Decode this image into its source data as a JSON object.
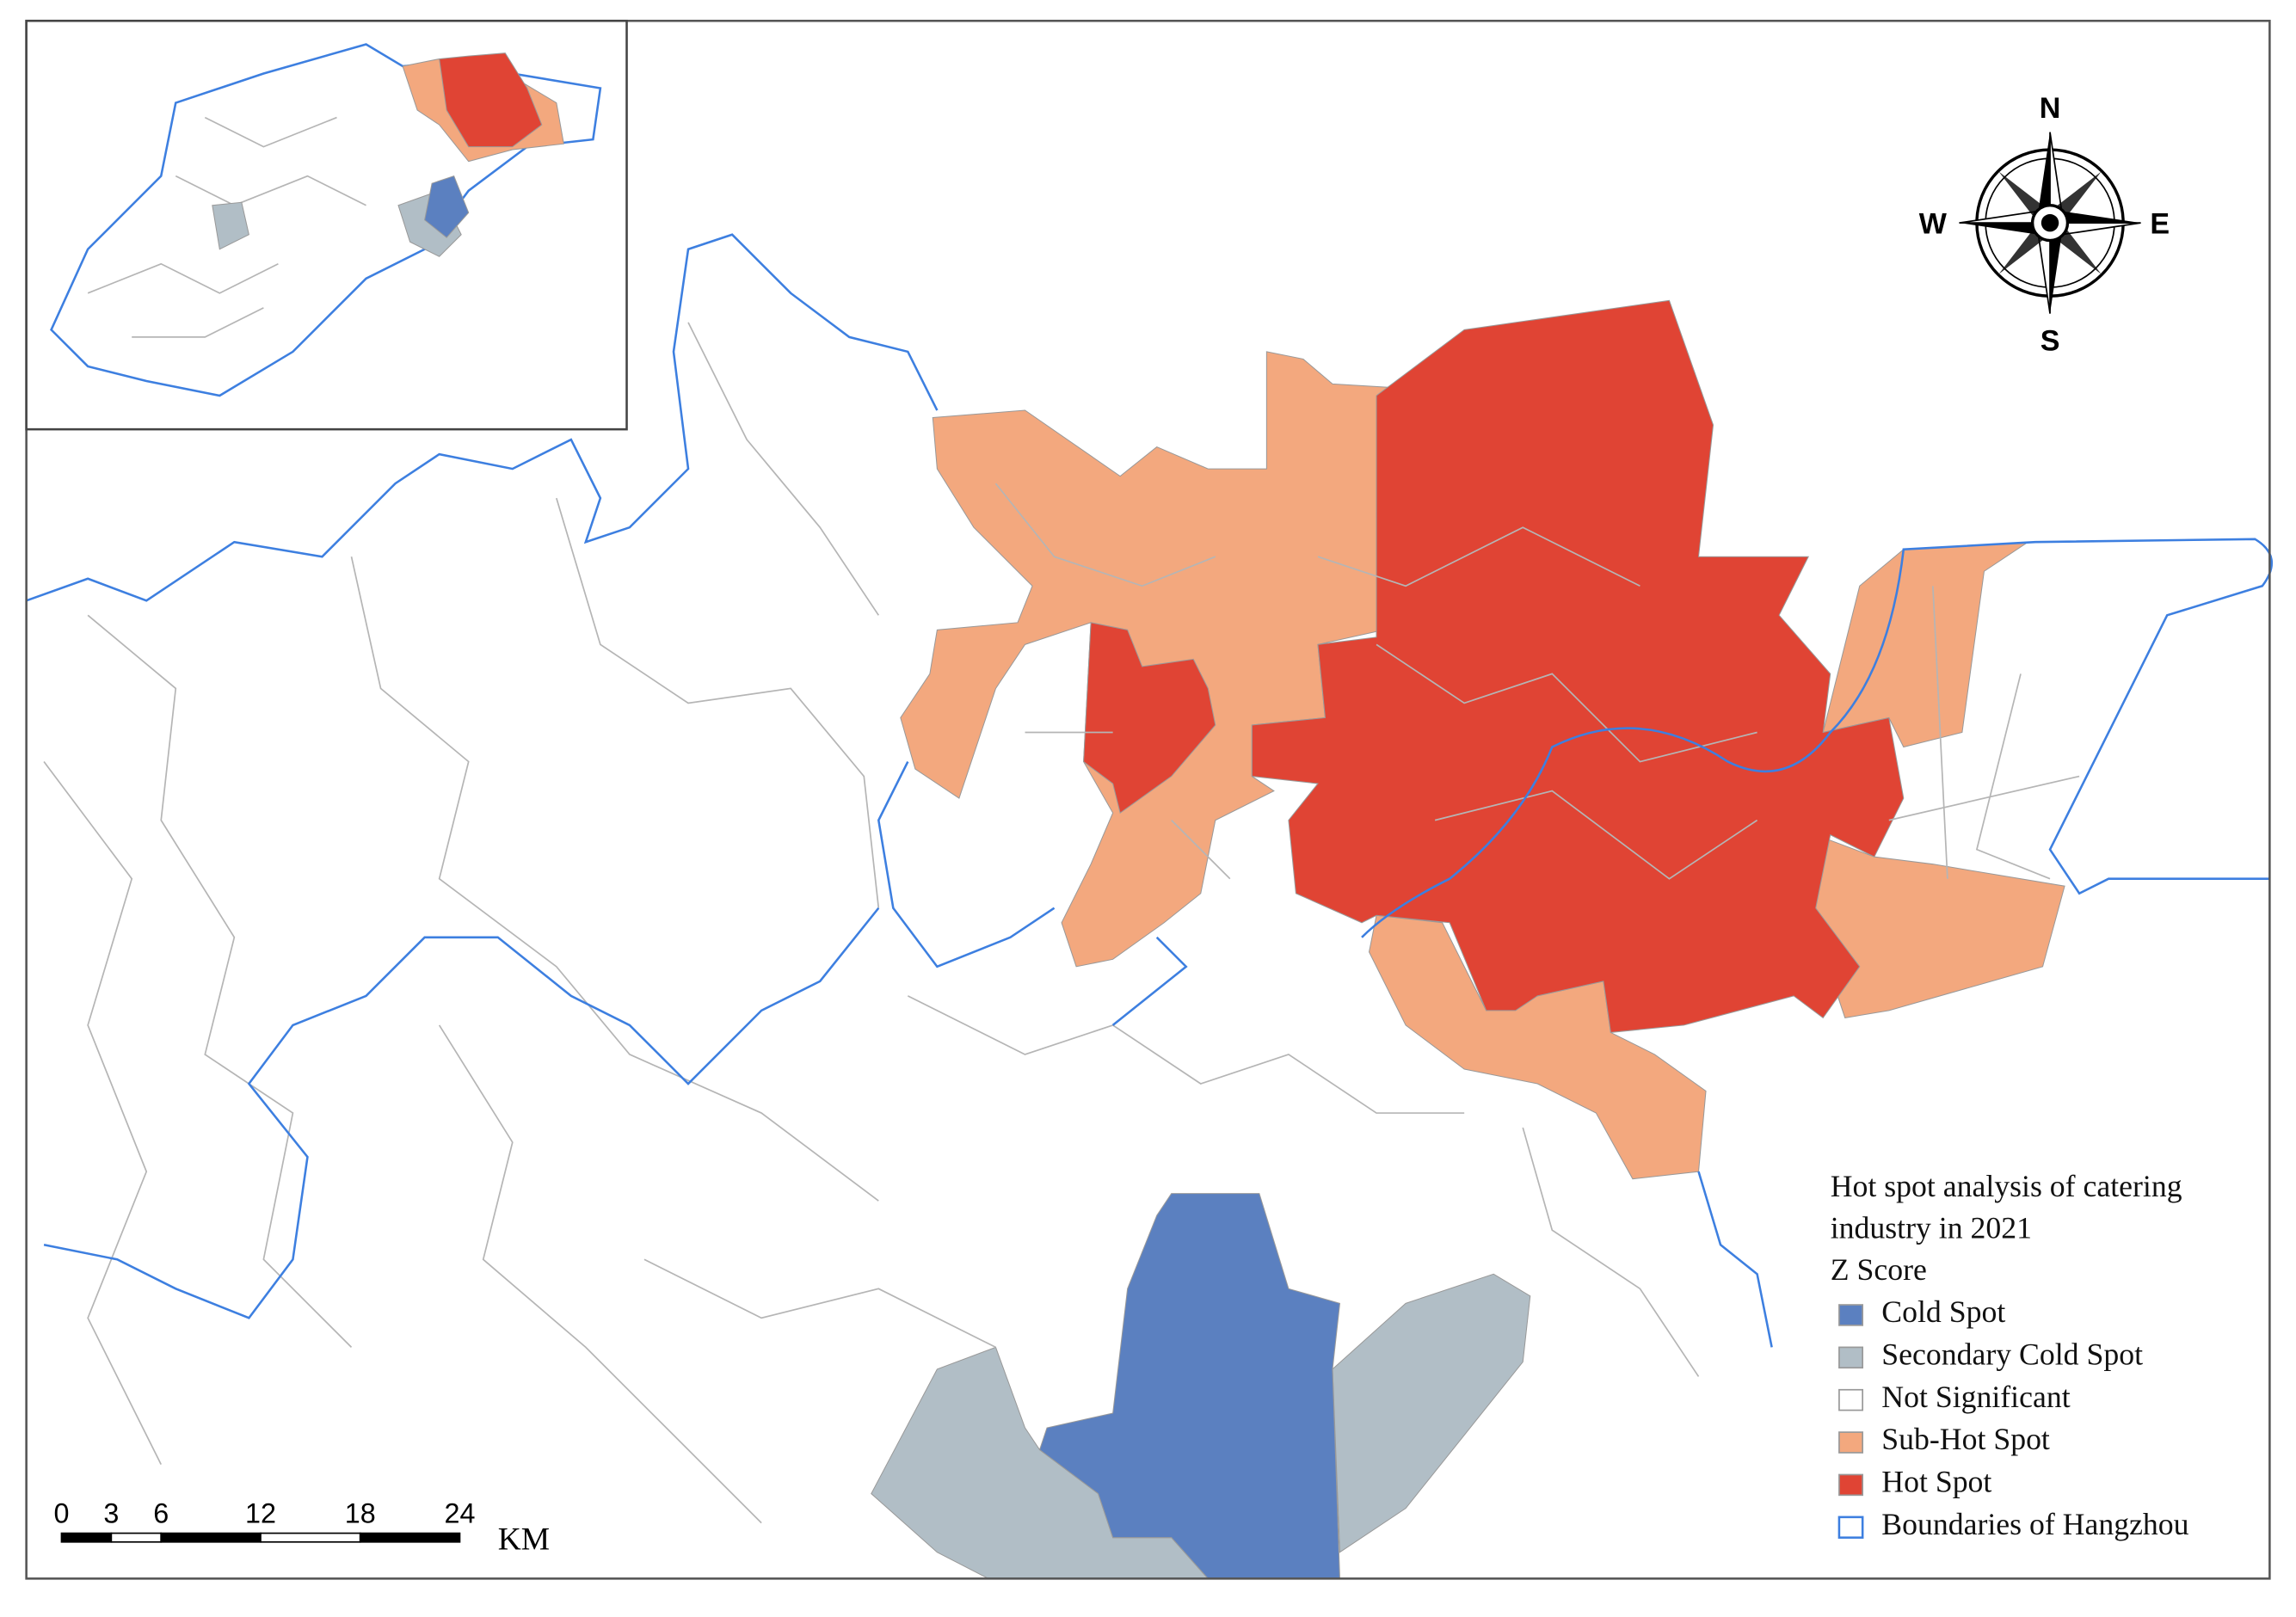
{
  "map": {
    "compass": {
      "north": "N",
      "east": "E",
      "south": "S",
      "west": "W"
    },
    "scale_bar": {
      "ticks": [
        "0",
        "3",
        "6",
        "12",
        "18",
        "24"
      ],
      "unit": "KM"
    },
    "legend": {
      "title_lines": [
        "Hot spot analysis of catering",
        "industry in 2021",
        "Z Score"
      ],
      "items": [
        {
          "label": "Cold Spot",
          "color": "#5b80c0"
        },
        {
          "label": "Secondary Cold Spot",
          "color": "#b1bec6"
        },
        {
          "label": "Not Significant",
          "color": "#ffffff"
        },
        {
          "label": "Sub-Hot Spot",
          "color": "#f3a87e"
        },
        {
          "label": "Hot Spot",
          "color": "#e04434"
        },
        {
          "label": "Boundaries of Hangzhou",
          "color": "#3d7fe0"
        }
      ]
    }
  }
}
